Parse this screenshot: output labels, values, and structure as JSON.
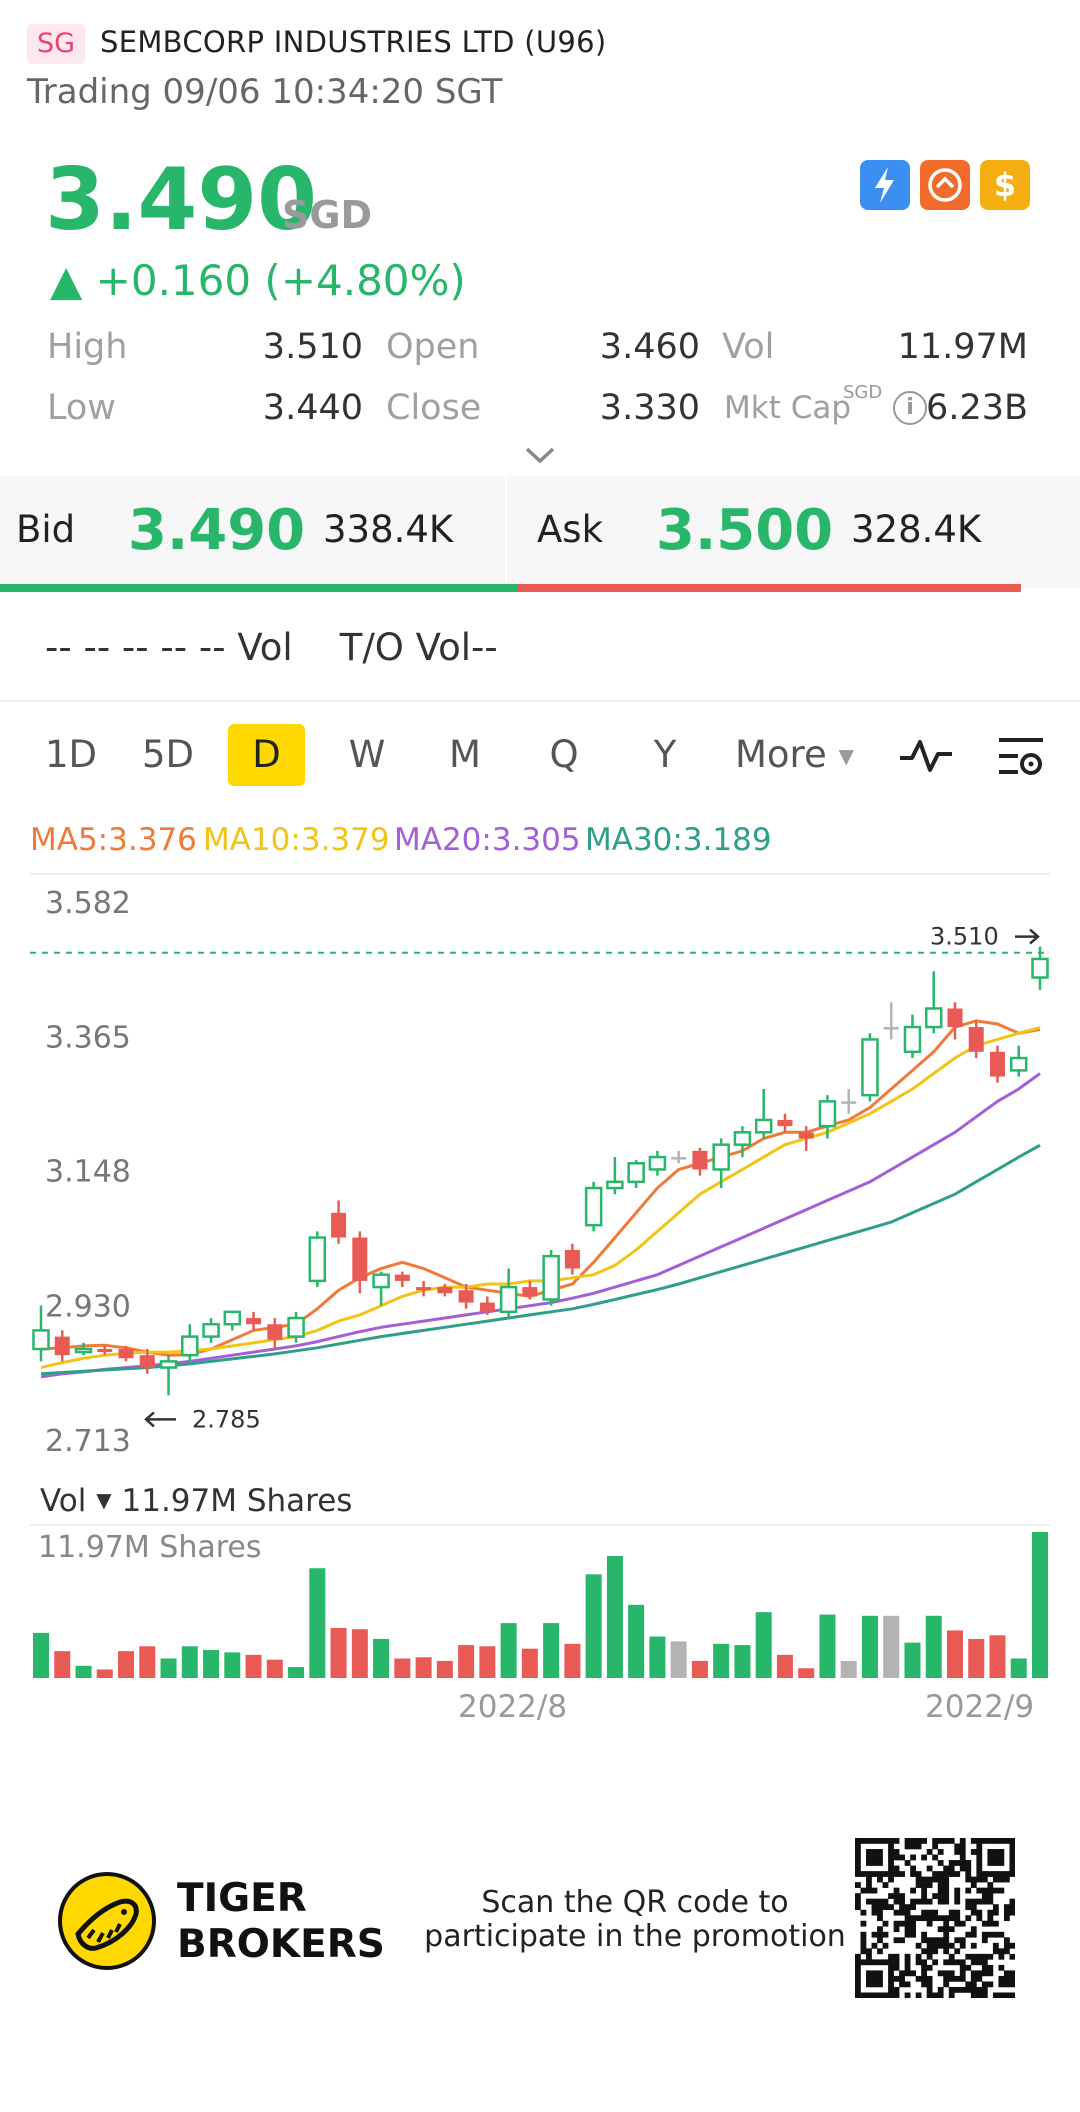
{
  "header": {
    "market_badge": "SG",
    "stock_name": "SEMBCORP INDUSTRIES LTD (U96)",
    "trading_status": "Trading 09/06 10:34:20 SGT"
  },
  "quote": {
    "price": "3.490",
    "currency": "SGD",
    "change": "▲ +0.160 (+4.80%)",
    "high_label": "High",
    "high": "3.510",
    "open_label": "Open",
    "open": "3.460",
    "vol_label": "Vol",
    "vol": "11.97M",
    "low_label": "Low",
    "low": "3.440",
    "close_label": "Close",
    "close": "3.330",
    "mktcap_label": "Mkt Cap",
    "mktcap_currency": "SGD",
    "mktcap": "6.23B"
  },
  "colors": {
    "up": "#27b66a",
    "down": "#ea5a55",
    "accent": "#ffd800"
  },
  "icons": [
    "lightning-icon",
    "swap-icon",
    "dollar-icon"
  ],
  "bidask": {
    "bid_label": "Bid",
    "bid_price": "3.490",
    "bid_size": "338.4K",
    "ask_label": "Ask",
    "ask_price": "3.500",
    "ask_size": "328.4K"
  },
  "quote_row": "-- -- -- -- -- Vol    T/O Vol--",
  "tabs": [
    {
      "label": "1D",
      "active": false
    },
    {
      "label": "5D",
      "active": false
    },
    {
      "label": "D",
      "active": true
    },
    {
      "label": "W",
      "active": false
    },
    {
      "label": "M",
      "active": false
    },
    {
      "label": "Q",
      "active": false
    },
    {
      "label": "Y",
      "active": false
    }
  ],
  "more_label": "More",
  "ma": [
    {
      "label": "MA5:3.376",
      "color": "#ef7a3a"
    },
    {
      "label": "MA10:3.379",
      "color": "#f2c418"
    },
    {
      "label": "MA20:3.305",
      "color": "#a45fd6"
    },
    {
      "label": "MA30:3.189",
      "color": "#2f9e8a"
    }
  ],
  "volume": {
    "title": "Vol",
    "value": "11.97M Shares",
    "max_label": "11.97M Shares",
    "date_labels": [
      "2022/8",
      "2022/9"
    ]
  },
  "chart_data": {
    "type": "candlestick",
    "y_ticks": [
      "3.582",
      "3.365",
      "3.148",
      "2.930",
      "2.713"
    ],
    "ylim": [
      2.713,
      3.582
    ],
    "high_marker": "3.510",
    "low_marker": "2.785",
    "candles": [
      {
        "o": 2.86,
        "c": 2.89,
        "h": 2.93,
        "l": 2.84,
        "up": true,
        "v": 3.7
      },
      {
        "o": 2.88,
        "c": 2.85,
        "h": 2.89,
        "l": 2.84,
        "up": false,
        "v": 2.2
      },
      {
        "o": 2.86,
        "c": 2.855,
        "h": 2.87,
        "l": 2.85,
        "up": true,
        "v": 1.0
      },
      {
        "o": 2.86,
        "c": 2.855,
        "h": 2.865,
        "l": 2.85,
        "up": false,
        "v": 0.7
      },
      {
        "o": 2.86,
        "c": 2.845,
        "h": 2.865,
        "l": 2.84,
        "up": false,
        "v": 2.2
      },
      {
        "o": 2.85,
        "c": 2.83,
        "h": 2.86,
        "l": 2.82,
        "up": false,
        "v": 2.6
      },
      {
        "o": 2.83,
        "c": 2.84,
        "h": 2.85,
        "l": 2.785,
        "up": true,
        "v": 1.6
      },
      {
        "o": 2.85,
        "c": 2.88,
        "h": 2.9,
        "l": 2.84,
        "up": true,
        "v": 2.6
      },
      {
        "o": 2.88,
        "c": 2.9,
        "h": 2.91,
        "l": 2.87,
        "up": true,
        "v": 2.3
      },
      {
        "o": 2.9,
        "c": 2.92,
        "h": 2.92,
        "l": 2.89,
        "up": true,
        "v": 2.1
      },
      {
        "o": 2.91,
        "c": 2.9,
        "h": 2.92,
        "l": 2.89,
        "up": false,
        "v": 1.9
      },
      {
        "o": 2.9,
        "c": 2.875,
        "h": 2.91,
        "l": 2.86,
        "up": false,
        "v": 1.5
      },
      {
        "o": 2.88,
        "c": 2.91,
        "h": 2.92,
        "l": 2.87,
        "up": true,
        "v": 0.9
      },
      {
        "o": 2.97,
        "c": 3.04,
        "h": 3.05,
        "l": 2.96,
        "up": true,
        "v": 9.0
      },
      {
        "o": 3.08,
        "c": 3.04,
        "h": 3.1,
        "l": 3.03,
        "up": false,
        "v": 4.1
      },
      {
        "o": 3.04,
        "c": 2.97,
        "h": 3.05,
        "l": 2.95,
        "up": false,
        "v": 4.0
      },
      {
        "o": 2.96,
        "c": 2.98,
        "h": 2.985,
        "l": 2.93,
        "up": true,
        "v": 3.2
      },
      {
        "o": 2.98,
        "c": 2.97,
        "h": 2.985,
        "l": 2.96,
        "up": false,
        "v": 1.6
      },
      {
        "o": 2.96,
        "c": 2.955,
        "h": 2.97,
        "l": 2.945,
        "up": false,
        "v": 1.7
      },
      {
        "o": 2.96,
        "c": 2.95,
        "h": 2.965,
        "l": 2.945,
        "up": false,
        "v": 1.4
      },
      {
        "o": 2.955,
        "c": 2.935,
        "h": 2.965,
        "l": 2.925,
        "up": false,
        "v": 2.7
      },
      {
        "o": 2.935,
        "c": 2.92,
        "h": 2.945,
        "l": 2.915,
        "up": false,
        "v": 2.6
      },
      {
        "o": 2.92,
        "c": 2.96,
        "h": 2.99,
        "l": 2.91,
        "up": true,
        "v": 4.5
      },
      {
        "o": 2.96,
        "c": 2.945,
        "h": 2.97,
        "l": 2.94,
        "up": false,
        "v": 2.4
      },
      {
        "o": 2.94,
        "c": 3.01,
        "h": 3.02,
        "l": 2.93,
        "up": true,
        "v": 4.5
      },
      {
        "o": 3.02,
        "c": 2.99,
        "h": 3.03,
        "l": 2.98,
        "up": false,
        "v": 2.8
      },
      {
        "o": 3.06,
        "c": 3.12,
        "h": 3.13,
        "l": 3.05,
        "up": true,
        "v": 8.5
      },
      {
        "o": 3.12,
        "c": 3.13,
        "h": 3.17,
        "l": 3.11,
        "up": true,
        "v": 10.0
      },
      {
        "o": 3.13,
        "c": 3.16,
        "h": 3.165,
        "l": 3.12,
        "up": true,
        "v": 6.0
      },
      {
        "o": 3.15,
        "c": 3.17,
        "h": 3.18,
        "l": 3.14,
        "up": true,
        "v": 3.4
      },
      {
        "o": 3.17,
        "c": 3.17,
        "h": 3.18,
        "l": 3.16,
        "up": null,
        "v": 3.0
      },
      {
        "o": 3.18,
        "c": 3.15,
        "h": 3.185,
        "l": 3.14,
        "up": false,
        "v": 1.4
      },
      {
        "o": 3.15,
        "c": 3.19,
        "h": 3.2,
        "l": 3.12,
        "up": true,
        "v": 2.8
      },
      {
        "o": 3.19,
        "c": 3.21,
        "h": 3.22,
        "l": 3.17,
        "up": true,
        "v": 2.7
      },
      {
        "o": 3.21,
        "c": 3.23,
        "h": 3.28,
        "l": 3.2,
        "up": true,
        "v": 5.4
      },
      {
        "o": 3.23,
        "c": 3.22,
        "h": 3.24,
        "l": 3.21,
        "up": false,
        "v": 1.9
      },
      {
        "o": 3.21,
        "c": 3.2,
        "h": 3.22,
        "l": 3.18,
        "up": false,
        "v": 0.8
      },
      {
        "o": 3.22,
        "c": 3.26,
        "h": 3.27,
        "l": 3.2,
        "up": true,
        "v": 5.2
      },
      {
        "o": 3.26,
        "c": 3.26,
        "h": 3.28,
        "l": 3.24,
        "up": null,
        "v": 1.4
      },
      {
        "o": 3.27,
        "c": 3.36,
        "h": 3.37,
        "l": 3.26,
        "up": true,
        "v": 5.1
      },
      {
        "o": 3.38,
        "c": 3.38,
        "h": 3.42,
        "l": 3.36,
        "up": null,
        "v": 5.1
      },
      {
        "o": 3.34,
        "c": 3.38,
        "h": 3.4,
        "l": 3.33,
        "up": true,
        "v": 2.9
      },
      {
        "o": 3.38,
        "c": 3.41,
        "h": 3.47,
        "l": 3.37,
        "up": true,
        "v": 5.1
      },
      {
        "o": 3.41,
        "c": 3.38,
        "h": 3.42,
        "l": 3.36,
        "up": false,
        "v": 3.9
      },
      {
        "o": 3.38,
        "c": 3.34,
        "h": 3.39,
        "l": 3.33,
        "up": false,
        "v": 3.2
      },
      {
        "o": 3.34,
        "c": 3.3,
        "h": 3.35,
        "l": 3.29,
        "up": false,
        "v": 3.5
      },
      {
        "o": 3.31,
        "c": 3.33,
        "h": 3.35,
        "l": 3.3,
        "up": true,
        "v": 1.6
      },
      {
        "o": 3.46,
        "c": 3.49,
        "h": 3.51,
        "l": 3.44,
        "up": true,
        "v": 11.97
      }
    ],
    "ma_series": [
      {
        "name": "MA5",
        "values": [
          2.86,
          2.862,
          2.865,
          2.866,
          2.862,
          2.855,
          2.85,
          2.851,
          2.86,
          2.875,
          2.89,
          2.895,
          2.9,
          2.925,
          2.955,
          2.975,
          2.99,
          3.0,
          2.99,
          2.975,
          2.96,
          2.955,
          2.95,
          2.945,
          2.955,
          2.965,
          3.0,
          3.04,
          3.08,
          3.12,
          3.15,
          3.16,
          3.17,
          3.18,
          3.2,
          3.21,
          3.21,
          3.22,
          3.23,
          3.25,
          3.28,
          3.31,
          3.34,
          3.38,
          3.39,
          3.385,
          3.37,
          3.376
        ]
      },
      {
        "name": "MA10",
        "values": [
          2.83,
          2.838,
          2.845,
          2.85,
          2.853,
          2.855,
          2.855,
          2.857,
          2.86,
          2.865,
          2.87,
          2.875,
          2.88,
          2.89,
          2.905,
          2.915,
          2.93,
          2.945,
          2.955,
          2.96,
          2.96,
          2.965,
          2.965,
          2.97,
          2.97,
          2.975,
          2.98,
          2.995,
          3.02,
          3.05,
          3.08,
          3.11,
          3.13,
          3.15,
          3.17,
          3.19,
          3.2,
          3.21,
          3.225,
          3.24,
          3.26,
          3.28,
          3.305,
          3.33,
          3.35,
          3.36,
          3.37,
          3.379
        ]
      },
      {
        "name": "MA20",
        "values": [
          2.815,
          2.82,
          2.823,
          2.827,
          2.83,
          2.833,
          2.836,
          2.84,
          2.845,
          2.85,
          2.855,
          2.86,
          2.865,
          2.872,
          2.88,
          2.888,
          2.895,
          2.9,
          2.905,
          2.91,
          2.915,
          2.92,
          2.925,
          2.93,
          2.935,
          2.942,
          2.95,
          2.96,
          2.97,
          2.98,
          2.995,
          3.01,
          3.025,
          3.04,
          3.055,
          3.07,
          3.085,
          3.1,
          3.115,
          3.13,
          3.15,
          3.17,
          3.19,
          3.21,
          3.235,
          3.26,
          3.28,
          3.305
        ]
      },
      {
        "name": "MA30",
        "values": [
          2.82,
          2.822,
          2.824,
          2.826,
          2.828,
          2.83,
          2.833,
          2.836,
          2.84,
          2.844,
          2.848,
          2.852,
          2.857,
          2.862,
          2.868,
          2.874,
          2.88,
          2.885,
          2.89,
          2.895,
          2.9,
          2.905,
          2.91,
          2.915,
          2.92,
          2.925,
          2.932,
          2.94,
          2.948,
          2.956,
          2.965,
          2.975,
          2.985,
          2.995,
          3.005,
          3.015,
          3.025,
          3.035,
          3.045,
          3.055,
          3.065,
          3.08,
          3.095,
          3.11,
          3.13,
          3.15,
          3.17,
          3.189
        ]
      }
    ]
  },
  "footer": {
    "brand_line1": "TIGER",
    "brand_line2": "BROKERS",
    "promo_line1": "Scan the QR code to",
    "promo_line2": "participate in the promotion"
  }
}
